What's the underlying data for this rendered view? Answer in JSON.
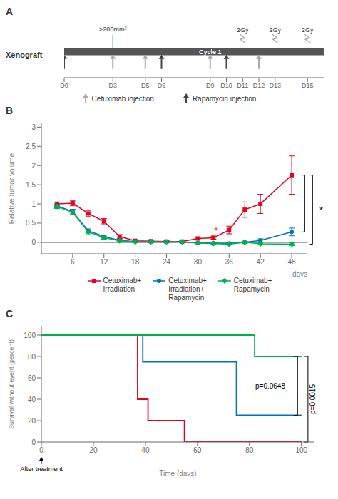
{
  "chart_data": [
    {
      "type": "timeline",
      "title": "A",
      "ylabel": "Xenograft",
      "color": "#555555",
      "legend": "bottom",
      "xlim": [
        0,
        16
      ],
      "xticks": [
        {
          "value": 0,
          "label": "D0"
        },
        {
          "value": 3,
          "label": "D3"
        },
        {
          "value": 5,
          "label": "D5"
        },
        {
          "value": 6,
          "label": "D6"
        },
        {
          "value": 9,
          "label": "D9"
        },
        {
          "value": 10,
          "label": "D10"
        },
        {
          "value": 11,
          "label": "D11"
        },
        {
          "value": 12,
          "label": "D12"
        },
        {
          "value": 13,
          "label": "D13"
        },
        {
          "value": 15,
          "label": "D15"
        }
      ],
      "series": [
        {
          "name": "Cetuximab injection",
          "color": "#aaaaaa",
          "marker": "arrow",
          "x": [
            3,
            5,
            9,
            12
          ]
        },
        {
          "name": "Rapamycin injection",
          "color": "#444444",
          "marker": "arrow",
          "x": [
            0,
            6,
            10
          ]
        }
      ],
      "annotations": [
        {
          "text": ">200mm³",
          "x": 3,
          "color": "#4472C4"
        },
        {
          "text": "Cycle 1",
          "x": [
            3,
            15
          ],
          "color": "#4472C4"
        },
        {
          "text": "2Gy",
          "x": [
            11,
            13,
            15
          ],
          "marker": "bolt",
          "color": "#aaaaaa"
        }
      ]
    },
    {
      "type": "line",
      "title": "B",
      "ylabel": "Relative tumor volume",
      "xlabel": "days",
      "legend": "bottom",
      "xlim": [
        0,
        51
      ],
      "ylim": [
        -0.3,
        3.1
      ],
      "xticks": [
        6,
        12,
        18,
        24,
        30,
        36,
        42,
        48
      ],
      "yticks": [
        0,
        {
          "value": 0.5,
          "label": "0,5"
        },
        1,
        {
          "value": 1.5,
          "label": "1,5"
        },
        2,
        {
          "value": 2.5,
          "label": "2,5"
        },
        3
      ],
      "series": [
        {
          "name": "Cetuximab+\nIrradiation",
          "color": "#e8001c",
          "marker": "square",
          "x": [
            3,
            6,
            9,
            12,
            15,
            18,
            21,
            24,
            27,
            30,
            33,
            36,
            39,
            42,
            48
          ],
          "values": [
            1.0,
            1.02,
            0.75,
            0.55,
            0.15,
            0.04,
            0.03,
            0.02,
            0.02,
            0.1,
            0.12,
            0.32,
            0.85,
            1.0,
            1.75
          ],
          "errors": [
            0.05,
            0.07,
            0.08,
            0.07,
            0.05,
            0.02,
            0.02,
            0.02,
            0.02,
            0.03,
            0.04,
            0.1,
            0.2,
            0.25,
            0.5
          ]
        },
        {
          "name": "Cetuximab+\nIrradiation+\nRapamycin",
          "color": "#0070c0",
          "marker": "circle",
          "x": [
            3,
            6,
            9,
            12,
            15,
            18,
            21,
            24,
            27,
            30,
            33,
            36,
            39,
            42,
            48
          ],
          "values": [
            0.95,
            0.8,
            0.3,
            0.15,
            0.05,
            0.02,
            0.01,
            0.01,
            0.01,
            -0.01,
            -0.02,
            -0.03,
            0.0,
            0.05,
            0.27
          ],
          "errors": [
            0.05,
            0.06,
            0.05,
            0.04,
            0.03,
            0.02,
            0.02,
            0.02,
            0.02,
            0.02,
            0.02,
            0.02,
            0.03,
            0.04,
            0.1
          ]
        },
        {
          "name": "Cetuximab+\nRapamycin",
          "color": "#00b050",
          "marker": "diamond",
          "x": [
            3,
            6,
            9,
            12,
            15,
            18,
            21,
            24,
            27,
            30,
            33,
            36,
            39,
            42,
            48
          ],
          "values": [
            0.93,
            0.78,
            0.27,
            0.12,
            0.04,
            0.01,
            0.01,
            0.01,
            0.01,
            -0.02,
            -0.03,
            -0.05,
            0.0,
            -0.04,
            -0.05
          ],
          "errors": [
            0.05,
            0.06,
            0.05,
            0.04,
            0.03,
            0.02,
            0.02,
            0.02,
            0.02,
            0.02,
            0.02,
            0.02,
            0.02,
            0.03,
            0.04
          ]
        }
      ],
      "annotations": [
        {
          "y": 0
        },
        {
          "text": "*",
          "x": 33.5,
          "y": 0.11,
          "color": "red"
        },
        {
          "text": "*",
          "brackets": [
            [
              1.75,
              0.27
            ],
            [
              1.75,
              -0.05
            ]
          ]
        }
      ]
    },
    {
      "type": "step",
      "title": "C",
      "ylabel": "Survival without event (percent)",
      "xlabel": "Time (days)",
      "xlim": [
        0,
        105
      ],
      "ylim": [
        0,
        108
      ],
      "xticks": [
        0,
        20,
        40,
        60,
        80,
        100
      ],
      "yticks": [
        0,
        20,
        40,
        60,
        80,
        100
      ],
      "series": [
        {
          "color": "#e8001c",
          "x": [
            0,
            37,
            37,
            41,
            41,
            55,
            55,
            65,
            65,
            100
          ],
          "values": [
            100,
            100,
            40,
            40,
            20,
            20,
            0,
            0,
            0,
            0
          ]
        },
        {
          "color": "#0070c0",
          "x": [
            0,
            39,
            39,
            75,
            75,
            90,
            90,
            100
          ],
          "values": [
            100,
            100,
            75,
            75,
            25,
            25,
            25,
            25
          ]
        },
        {
          "color": "#00b050",
          "x": [
            0,
            82,
            82,
            95,
            95,
            100
          ],
          "values": [
            100,
            100,
            80,
            80,
            80,
            80
          ]
        }
      ],
      "annotations": [
        {
          "text": "After treatment",
          "x": 0,
          "marker": "arrow"
        },
        {
          "text": "p=0.0648",
          "bracket": [
            25,
            80
          ]
        },
        {
          "text": "p=0.0015",
          "bracket": [
            0,
            80
          ]
        }
      ]
    }
  ]
}
